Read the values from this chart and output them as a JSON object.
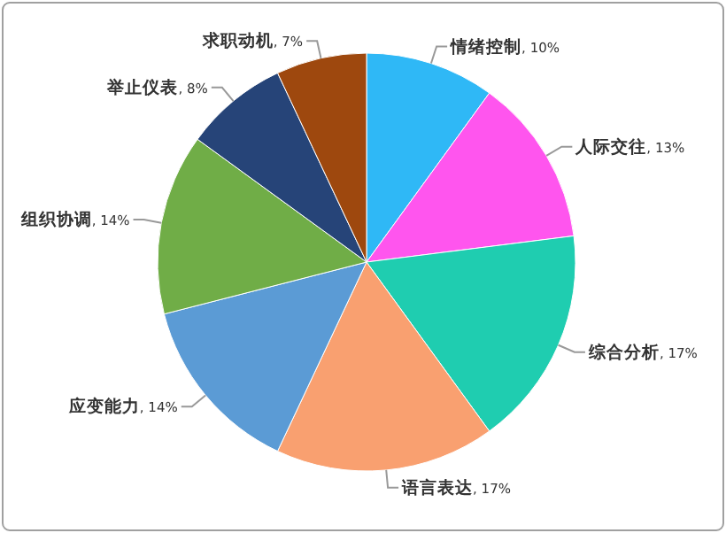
{
  "chart_data": {
    "type": "pie",
    "categories": [
      "情绪控制",
      "人际交往",
      "综合分析",
      "语言表达",
      "应变能力",
      "组织协调",
      "举止仪表",
      "求职动机"
    ],
    "values": [
      10,
      13,
      17,
      17,
      14,
      14,
      8,
      7
    ],
    "value_labels": [
      ", 10%",
      ", 13%",
      ", 17%",
      ", 17%",
      ", 14%",
      ", 14%",
      ", 8%",
      ", 7%"
    ],
    "colors": [
      "#2fb8f6",
      "#ff55ee",
      "#1fcdb0",
      "#f9a070",
      "#5b9bd5",
      "#70ad47",
      "#264478",
      "#9e480e"
    ]
  }
}
